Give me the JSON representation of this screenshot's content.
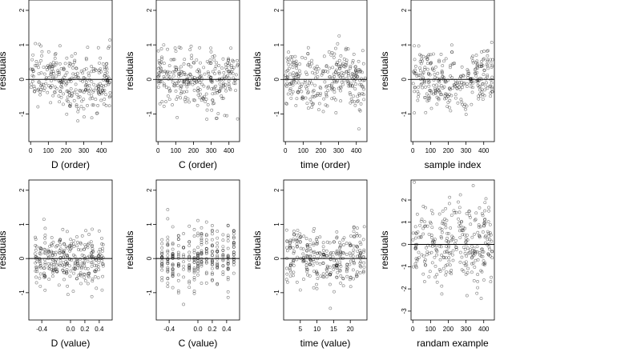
{
  "chart_data": [
    {
      "type": "scatter",
      "panel": "d-order",
      "xlabel": "D (order)",
      "ylabel": "residuals",
      "xlim": [
        -10,
        460
      ],
      "ylim": [
        -1.8,
        2.3
      ],
      "xticks": [
        0,
        100,
        200,
        300,
        400
      ],
      "yticks": [
        -1,
        0,
        1,
        2
      ],
      "reference_line": 0,
      "n": 300,
      "seed": 11,
      "pattern": "order-d"
    },
    {
      "type": "scatter",
      "panel": "c-order",
      "xlabel": "C (order)",
      "ylabel": "residuals",
      "xlim": [
        -10,
        460
      ],
      "ylim": [
        -1.8,
        2.3
      ],
      "xticks": [
        0,
        100,
        200,
        300,
        400
      ],
      "yticks": [
        -1,
        0,
        1,
        2
      ],
      "reference_line": 0,
      "n": 300,
      "seed": 23,
      "pattern": "order-c"
    },
    {
      "type": "scatter",
      "panel": "time-order",
      "xlabel": "time (order)",
      "ylabel": "residuals",
      "xlim": [
        -10,
        460
      ],
      "ylim": [
        -1.8,
        2.3
      ],
      "xticks": [
        0,
        100,
        200,
        300,
        400
      ],
      "yticks": [
        -1,
        0,
        1,
        2
      ],
      "reference_line": 0,
      "n": 300,
      "seed": 37,
      "pattern": "order-t"
    },
    {
      "type": "scatter",
      "panel": "sample-index",
      "xlabel": "sample index",
      "ylabel": "residuals",
      "xlim": [
        -10,
        460
      ],
      "ylim": [
        -1.8,
        2.3
      ],
      "xticks": [
        0,
        100,
        200,
        300,
        400
      ],
      "yticks": [
        -1,
        0,
        1,
        2
      ],
      "reference_line": 0,
      "n": 300,
      "seed": 41,
      "pattern": "order-s"
    },
    {
      "type": "scatter",
      "panel": "d-value",
      "xlabel": "D (value)",
      "ylabel": "residuals",
      "xlim": [
        -0.58,
        0.58
      ],
      "ylim": [
        -1.8,
        2.3
      ],
      "xticks": [
        -0.4,
        0.0,
        0.2,
        0.4
      ],
      "yticks": [
        -1,
        0,
        1,
        2
      ],
      "reference_line": 0,
      "n": 300,
      "seed": 53,
      "pattern": "value-d"
    },
    {
      "type": "scatter",
      "panel": "c-value",
      "xlabel": "C (value)",
      "ylabel": "residuals",
      "xlim": [
        -0.58,
        0.58
      ],
      "ylim": [
        -1.8,
        2.3
      ],
      "xticks": [
        -0.4,
        0.0,
        0.2,
        0.4
      ],
      "yticks": [
        -1,
        0,
        1,
        2
      ],
      "reference_line": 0,
      "n": 300,
      "seed": 67,
      "pattern": "value-c"
    },
    {
      "type": "scatter",
      "panel": "time-value",
      "xlabel": "time (value)",
      "ylabel": "residuals",
      "xlim": [
        0,
        25
      ],
      "ylim": [
        -1.8,
        2.3
      ],
      "xticks": [
        5,
        10,
        15,
        20
      ],
      "yticks": [
        -1,
        0,
        1,
        2
      ],
      "reference_line": 0,
      "n": 300,
      "seed": 79,
      "pattern": "value-t"
    },
    {
      "type": "scatter",
      "panel": "random-example",
      "xlabel": "randam example",
      "ylabel": "residuals",
      "xlim": [
        -10,
        460
      ],
      "ylim": [
        -3.4,
        2.9
      ],
      "xticks": [
        0,
        100,
        200,
        300,
        400
      ],
      "yticks": [
        -3,
        -2,
        -1,
        0,
        1,
        2
      ],
      "reference_line": 0,
      "n": 300,
      "seed": 97,
      "pattern": "random"
    }
  ]
}
